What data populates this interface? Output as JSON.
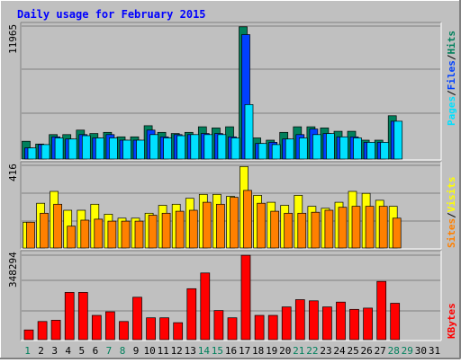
{
  "colors": {
    "background": "#c0c0c0",
    "plot_bg": "#c0c0c0",
    "title": "#0000ff",
    "hits": "#00805c",
    "files": "#0040ff",
    "pages": "#00e0ff",
    "visits": "#ffff00",
    "sites": "#ff8000",
    "kbytes": "#ff0000",
    "weekend_day": "#00805c",
    "weekday": "#000000"
  },
  "chart_data": [
    {
      "type": "bar",
      "title": "Daily usage for February 2015",
      "y_max_label": "11965",
      "y_max": 11965,
      "legend": [
        {
          "name": "Pages",
          "color": "#00e0ff"
        },
        {
          "name": "/",
          "color": "#000000"
        },
        {
          "name": "Files",
          "color": "#0040ff"
        },
        {
          "name": "/",
          "color": "#000000"
        },
        {
          "name": "Hits",
          "color": "#00805c"
        }
      ],
      "categories": [
        "1",
        "2",
        "3",
        "4",
        "5",
        "6",
        "7",
        "8",
        "9",
        "10",
        "11",
        "12",
        "13",
        "14",
        "15",
        "16",
        "17",
        "18",
        "19",
        "20",
        "21",
        "22",
        "23",
        "24",
        "25",
        "26",
        "27",
        "28",
        "29",
        "30",
        "31"
      ],
      "weekend_days": [
        "1",
        "7",
        "8",
        "14",
        "15",
        "21",
        "22",
        "28",
        "29"
      ],
      "series": [
        {
          "name": "Hits",
          "color": "#00805c",
          "values": [
            1600,
            1350,
            2200,
            2200,
            2600,
            2300,
            2400,
            2000,
            2000,
            3000,
            2400,
            2300,
            2400,
            2900,
            2800,
            2900,
            11900,
            1900,
            1700,
            2400,
            2900,
            2900,
            2800,
            2500,
            2500,
            1700,
            1700,
            3900,
            null,
            null,
            null
          ]
        },
        {
          "name": "Files",
          "color": "#0040ff",
          "values": [
            1000,
            1300,
            2000,
            1800,
            2200,
            1900,
            2200,
            1700,
            1700,
            2600,
            2000,
            2200,
            2200,
            2300,
            2300,
            2000,
            11200,
            1400,
            1500,
            1800,
            2200,
            2700,
            2300,
            2000,
            2000,
            1500,
            1500,
            3400,
            null,
            null,
            null
          ]
        },
        {
          "name": "Pages",
          "color": "#00e0ff",
          "values": [
            1000,
            1300,
            1900,
            1800,
            2100,
            1900,
            1900,
            1700,
            1700,
            2200,
            1900,
            2100,
            2200,
            2200,
            2200,
            1900,
            4900,
            1400,
            1300,
            1800,
            1900,
            2200,
            2300,
            2000,
            1900,
            1500,
            1500,
            3400,
            null,
            null,
            null
          ]
        }
      ]
    },
    {
      "type": "bar",
      "y_max_label": "416",
      "y_max": 416,
      "legend": [
        {
          "name": "Sites",
          "color": "#ff8000"
        },
        {
          "name": "/",
          "color": "#000000"
        },
        {
          "name": "Visits",
          "color": "#ffff00"
        }
      ],
      "categories": [
        "1",
        "2",
        "3",
        "4",
        "5",
        "6",
        "7",
        "8",
        "9",
        "10",
        "11",
        "12",
        "13",
        "14",
        "15",
        "16",
        "17",
        "18",
        "19",
        "20",
        "21",
        "22",
        "23",
        "24",
        "25",
        "26",
        "27",
        "28",
        "29",
        "30",
        "31"
      ],
      "series": [
        {
          "name": "Visits",
          "color": "#ffff00",
          "values": [
            130,
            225,
            285,
            190,
            190,
            220,
            170,
            150,
            150,
            175,
            215,
            220,
            250,
            270,
            270,
            260,
            410,
            265,
            230,
            215,
            265,
            210,
            200,
            230,
            285,
            275,
            240,
            210,
            null,
            null,
            null
          ]
        },
        {
          "name": "Sites",
          "color": "#ff8000",
          "values": [
            130,
            175,
            220,
            110,
            140,
            145,
            135,
            135,
            135,
            165,
            175,
            185,
            190,
            230,
            220,
            255,
            290,
            225,
            185,
            175,
            175,
            180,
            190,
            205,
            210,
            210,
            210,
            150,
            null,
            null,
            null
          ]
        }
      ]
    },
    {
      "type": "bar",
      "y_max_label": "348294",
      "y_max": 348294,
      "legend": [
        {
          "name": "KBytes",
          "color": "#ff0000"
        }
      ],
      "categories": [
        "1",
        "2",
        "3",
        "4",
        "5",
        "6",
        "7",
        "8",
        "9",
        "10",
        "11",
        "12",
        "13",
        "14",
        "15",
        "16",
        "17",
        "18",
        "19",
        "20",
        "21",
        "22",
        "23",
        "24",
        "25",
        "26",
        "27",
        "28",
        "29",
        "30",
        "31"
      ],
      "series": [
        {
          "name": "KBytes",
          "color": "#ff0000",
          "values": [
            40000,
            75000,
            80000,
            195000,
            195000,
            100000,
            115000,
            75000,
            175000,
            90000,
            90000,
            70000,
            210000,
            275000,
            120000,
            90000,
            348000,
            100000,
            100000,
            135000,
            165000,
            160000,
            135000,
            155000,
            125000,
            130000,
            240000,
            150000,
            null,
            null,
            null
          ]
        }
      ]
    }
  ]
}
